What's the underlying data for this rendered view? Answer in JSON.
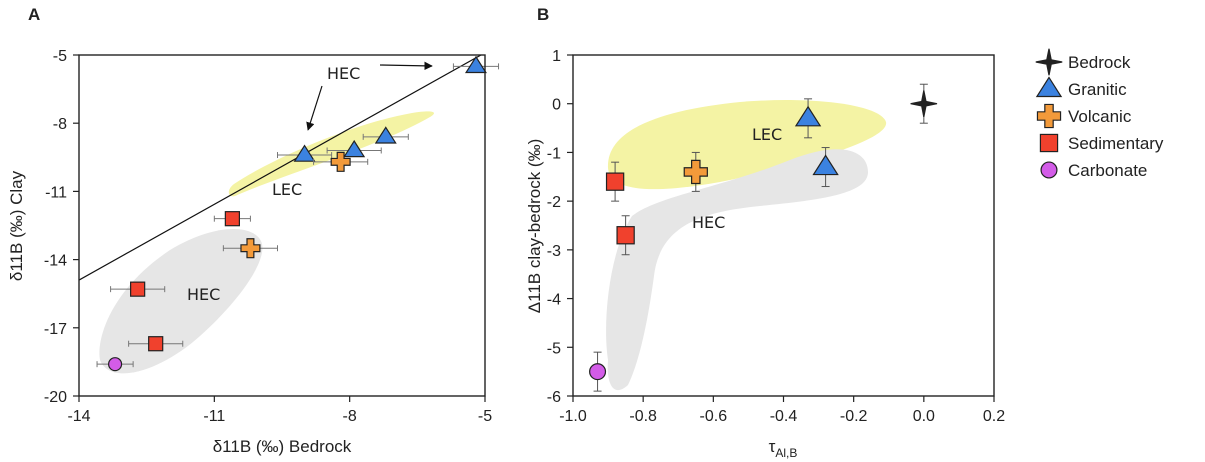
{
  "chart_data": [
    {
      "panel": "A",
      "type": "scatter",
      "xlabel": "δ11B (‰) Bedrock",
      "ylabel": "δ11B (‰) Clay",
      "xlim": [
        -14,
        -5
      ],
      "ylim": [
        -20,
        -5
      ],
      "xticks": [
        -14,
        -11,
        -8,
        -5
      ],
      "yticks": [
        -5,
        -8,
        -11,
        -14,
        -17,
        -20
      ],
      "reference_line": {
        "x": [
          -14,
          -5
        ],
        "y": [
          -14.9,
          -4.9
        ]
      },
      "regions": [
        {
          "label": "LEC",
          "color": "#f4f3a4"
        },
        {
          "label": "HEC",
          "color": "#e6e6e6"
        }
      ],
      "annotations": [
        {
          "label": "HEC",
          "arrow_to": [
            -8.8,
            -9.1
          ]
        },
        {
          "label": "HEC",
          "arrow_to": [
            -5.7,
            -5.5
          ]
        }
      ],
      "series": [
        {
          "name": "Granitic",
          "points": [
            {
              "x": -5.2,
              "y": -5.5,
              "xerr": 0.5
            },
            {
              "x": -7.2,
              "y": -8.6,
              "xerr": 0.5
            },
            {
              "x": -7.9,
              "y": -9.2,
              "xerr": 0.6
            },
            {
              "x": -9.0,
              "y": -9.4,
              "xerr": 0.6
            }
          ]
        },
        {
          "name": "Volcanic",
          "points": [
            {
              "x": -8.2,
              "y": -9.7,
              "xerr": 0.6
            },
            {
              "x": -10.2,
              "y": -13.5,
              "xerr": 0.6
            }
          ]
        },
        {
          "name": "Sedimentary",
          "points": [
            {
              "x": -10.6,
              "y": -12.2,
              "xerr": 0.4
            },
            {
              "x": -12.7,
              "y": -15.3,
              "xerr": 0.6
            },
            {
              "x": -12.3,
              "y": -17.7,
              "xerr": 0.6
            }
          ]
        },
        {
          "name": "Carbonate",
          "points": [
            {
              "x": -13.2,
              "y": -18.6,
              "xerr": 0.4
            }
          ]
        }
      ]
    },
    {
      "panel": "B",
      "type": "scatter",
      "xlabel": "τAl,B",
      "ylabel": "Δ11B clay-bedrock (‰)",
      "xlim": [
        -1.0,
        0.2
      ],
      "ylim": [
        -6,
        1
      ],
      "xticks": [
        "-1.0",
        "-0.8",
        "-0.6",
        "-0.4",
        "-0.2",
        "0.0",
        "0.2"
      ],
      "yticks": [
        "1",
        "0",
        "-1",
        "-2",
        "-3",
        "-4",
        "-5",
        "-6"
      ],
      "regions": [
        {
          "label": "LEC",
          "color": "#f4f3a4"
        },
        {
          "label": "HEC",
          "color": "#e6e6e6"
        }
      ],
      "series": [
        {
          "name": "Bedrock",
          "points": [
            {
              "x": 0.0,
              "y": 0.0,
              "yerr": 0.4
            }
          ]
        },
        {
          "name": "Granitic",
          "points": [
            {
              "x": -0.33,
              "y": -0.3,
              "yerr": 0.4
            },
            {
              "x": -0.28,
              "y": -1.3,
              "yerr": 0.4
            }
          ]
        },
        {
          "name": "Volcanic",
          "points": [
            {
              "x": -0.65,
              "y": -1.4,
              "yerr": 0.4
            }
          ]
        },
        {
          "name": "Sedimentary",
          "points": [
            {
              "x": -0.88,
              "y": -1.6,
              "yerr": 0.4
            },
            {
              "x": -0.85,
              "y": -2.7,
              "yerr": 0.4
            }
          ]
        },
        {
          "name": "Carbonate",
          "points": [
            {
              "x": -0.93,
              "y": -5.5,
              "yerr": 0.4
            }
          ]
        }
      ]
    }
  ],
  "legend": {
    "placement": "right",
    "entries": [
      {
        "name": "Bedrock",
        "marker": "star-icon",
        "color": "#222222"
      },
      {
        "name": "Granitic",
        "marker": "triangle-icon",
        "color": "#3b82e0"
      },
      {
        "name": "Volcanic",
        "marker": "cross-icon",
        "color": "#f39a3a"
      },
      {
        "name": "Sedimentary",
        "marker": "square-icon",
        "color": "#f0412d"
      },
      {
        "name": "Carbonate",
        "marker": "circle-icon",
        "color": "#d35ce8"
      }
    ]
  }
}
